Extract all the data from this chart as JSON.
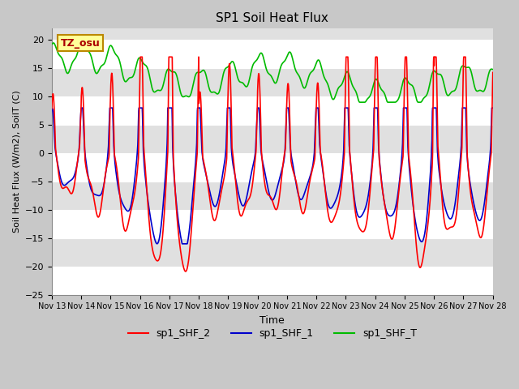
{
  "title": "SP1 Soil Heat Flux",
  "xlabel": "Time",
  "ylabel": "Soil Heat Flux (W/m2), SoilT (C)",
  "ylim": [
    -25,
    22
  ],
  "yticks": [
    -25,
    -20,
    -15,
    -10,
    -5,
    0,
    5,
    10,
    15,
    20
  ],
  "xlim": [
    0,
    15
  ],
  "xtick_labels": [
    "Nov 13",
    "Nov 14",
    "Nov 15",
    "Nov 16",
    "Nov 17",
    "Nov 18",
    "Nov 19",
    "Nov 20",
    "Nov 21",
    "Nov 22",
    "Nov 23",
    "Nov 24",
    "Nov 25",
    "Nov 26",
    "Nov 27",
    "Nov 28"
  ],
  "legend_labels": [
    "sp1_SHF_2",
    "sp1_SHF_1",
    "sp1_SHF_T"
  ],
  "color_red": "#ff0000",
  "color_blue": "#0000cc",
  "color_green": "#00bb00",
  "annotation_text": "TZ_osu",
  "annotation_bg": "#ffff99",
  "annotation_border": "#bb8800",
  "line_width": 1.2,
  "band_colors": [
    "#ffffff",
    "#e0e0e0"
  ],
  "fig_bg": "#c8c8c8"
}
